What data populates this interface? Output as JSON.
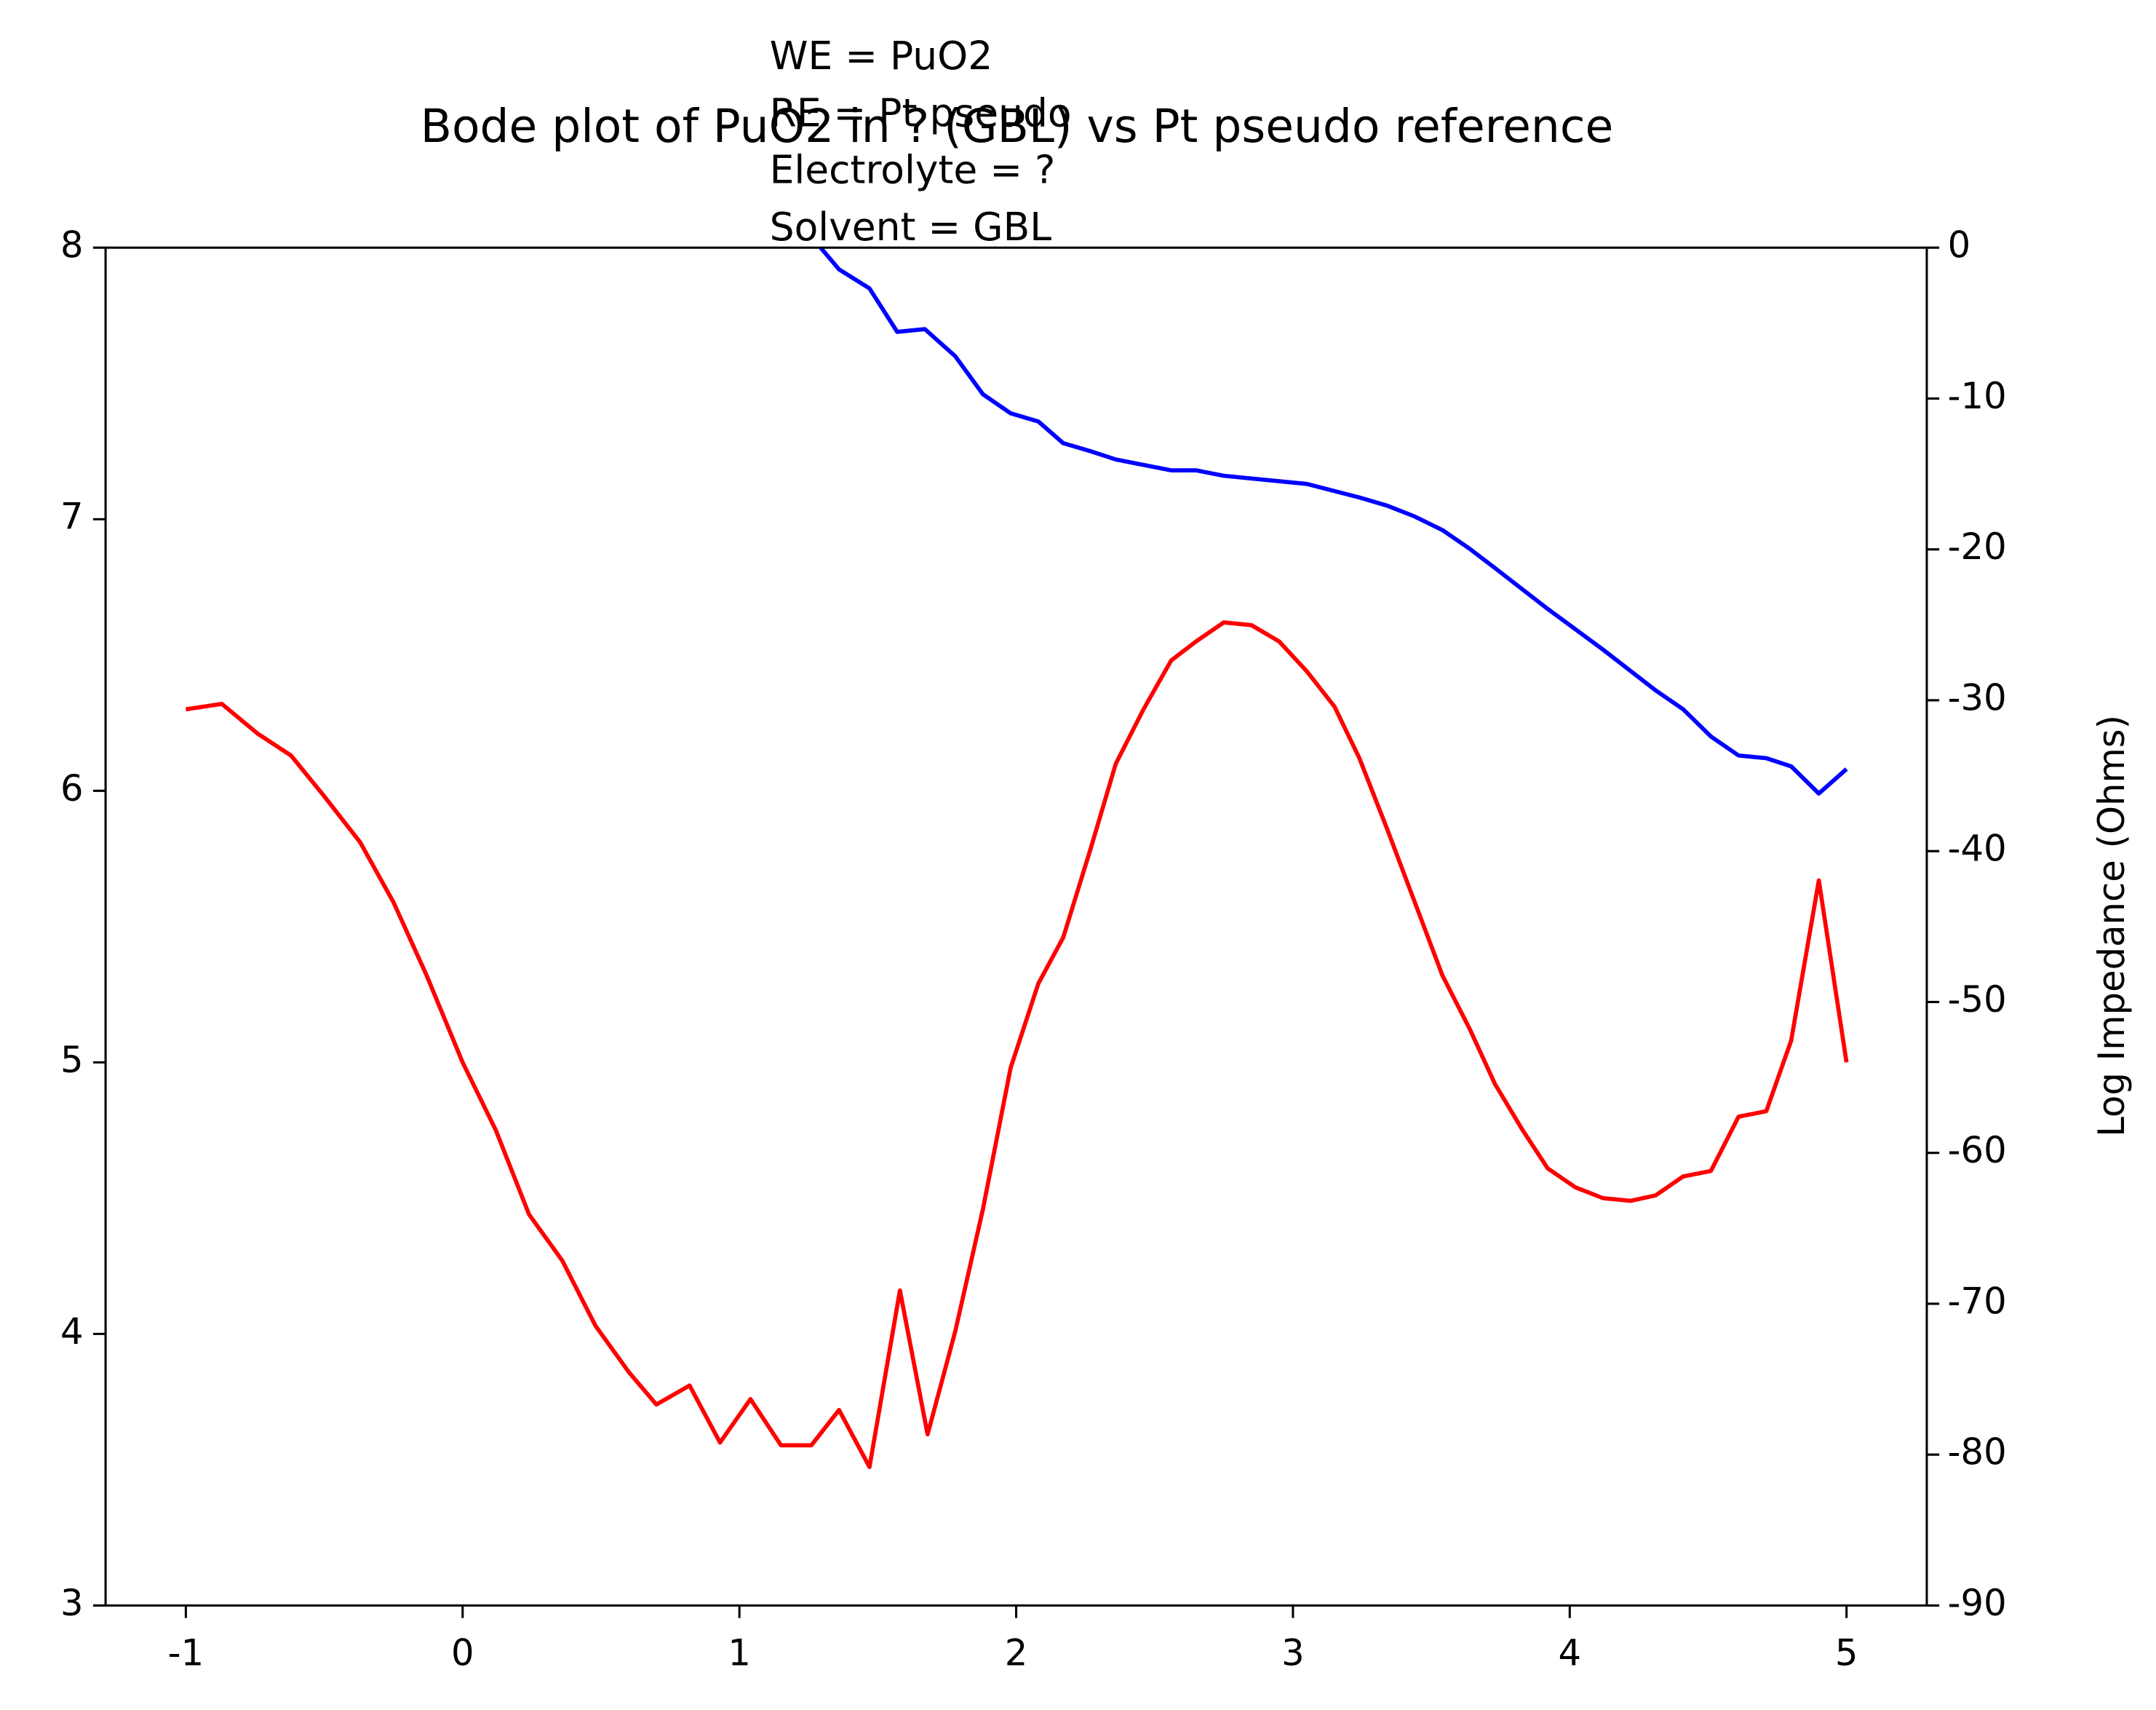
{
  "chart_data": {
    "type": "line",
    "title": "Bode plot of PuO2 in ? (GBL) vs Pt pseudo reference",
    "annotations": [
      "WE = PuO2",
      "RE = Pt pseudo",
      "Electrolyte = ?",
      "Solvent = GBL"
    ],
    "y2label": "Log Impedance (Ohms)",
    "xlim": [
      -1.29,
      5.29
    ],
    "xticks": [
      -1,
      0,
      1,
      2,
      3,
      4,
      5
    ],
    "ylim": [
      3,
      8
    ],
    "yticks": [
      3,
      4,
      5,
      6,
      7,
      8
    ],
    "y2lim": [
      -90,
      0
    ],
    "y2ticks": [
      -90,
      -80,
      -70,
      -60,
      -50,
      -40,
      -30,
      -20,
      -10,
      0
    ],
    "series": [
      {
        "color": "#ff0000",
        "x": [
          -1,
          -0.87,
          -0.74,
          -0.62,
          -0.5,
          -0.37,
          -0.25,
          -0.13,
          0.0,
          0.12,
          0.24,
          0.36,
          0.48,
          0.6,
          0.7,
          0.82,
          0.93,
          1.04,
          1.15,
          1.26,
          1.36,
          1.47,
          1.58,
          1.68,
          1.78,
          1.88,
          1.98,
          2.08,
          2.17,
          2.27,
          2.36,
          2.46,
          2.56,
          2.65,
          2.75,
          2.85,
          2.95,
          3.05,
          3.15,
          3.24,
          3.34,
          3.44,
          3.54,
          3.64,
          3.73,
          3.83,
          3.92,
          4.02,
          4.12,
          4.22,
          4.31,
          4.41,
          4.51,
          4.61,
          4.71,
          4.8,
          4.9,
          5.0
        ],
        "values": [
          6.3,
          6.32,
          6.21,
          6.13,
          5.98,
          5.81,
          5.59,
          5.32,
          5.0,
          4.75,
          4.44,
          4.27,
          4.03,
          3.86,
          3.74,
          3.81,
          3.6,
          3.76,
          3.59,
          3.59,
          3.72,
          3.51,
          4.16,
          3.63,
          4.01,
          4.46,
          4.98,
          5.29,
          5.46,
          5.79,
          6.1,
          6.3,
          6.48,
          6.55,
          6.62,
          6.61,
          6.55,
          6.44,
          6.31,
          6.12,
          5.86,
          5.59,
          5.32,
          5.12,
          4.92,
          4.75,
          4.61,
          4.54,
          4.5,
          4.49,
          4.51,
          4.58,
          4.6,
          4.8,
          4.82,
          5.08,
          5.67,
          5.0
        ]
      },
      {
        "color": "#0000ff",
        "x": [
          1.26,
          1.36,
          1.47,
          1.57,
          1.67,
          1.78,
          1.88,
          1.98,
          2.08,
          2.17,
          2.27,
          2.36,
          2.46,
          2.56,
          2.65,
          2.75,
          3.05,
          3.24,
          3.34,
          3.44,
          3.54,
          3.64,
          3.73,
          3.92,
          4.12,
          4.31,
          4.41,
          4.51,
          4.61,
          4.71,
          4.8,
          4.9,
          5.0
        ],
        "values": [
          8.04,
          7.92,
          7.85,
          7.69,
          7.7,
          7.6,
          7.46,
          7.39,
          7.36,
          7.28,
          7.25,
          7.22,
          7.2,
          7.18,
          7.18,
          7.16,
          7.13,
          7.08,
          7.05,
          7.01,
          6.96,
          6.89,
          6.82,
          6.67,
          6.52,
          6.37,
          6.3,
          6.2,
          6.13,
          6.12,
          6.09,
          5.99,
          6.08
        ]
      }
    ]
  }
}
